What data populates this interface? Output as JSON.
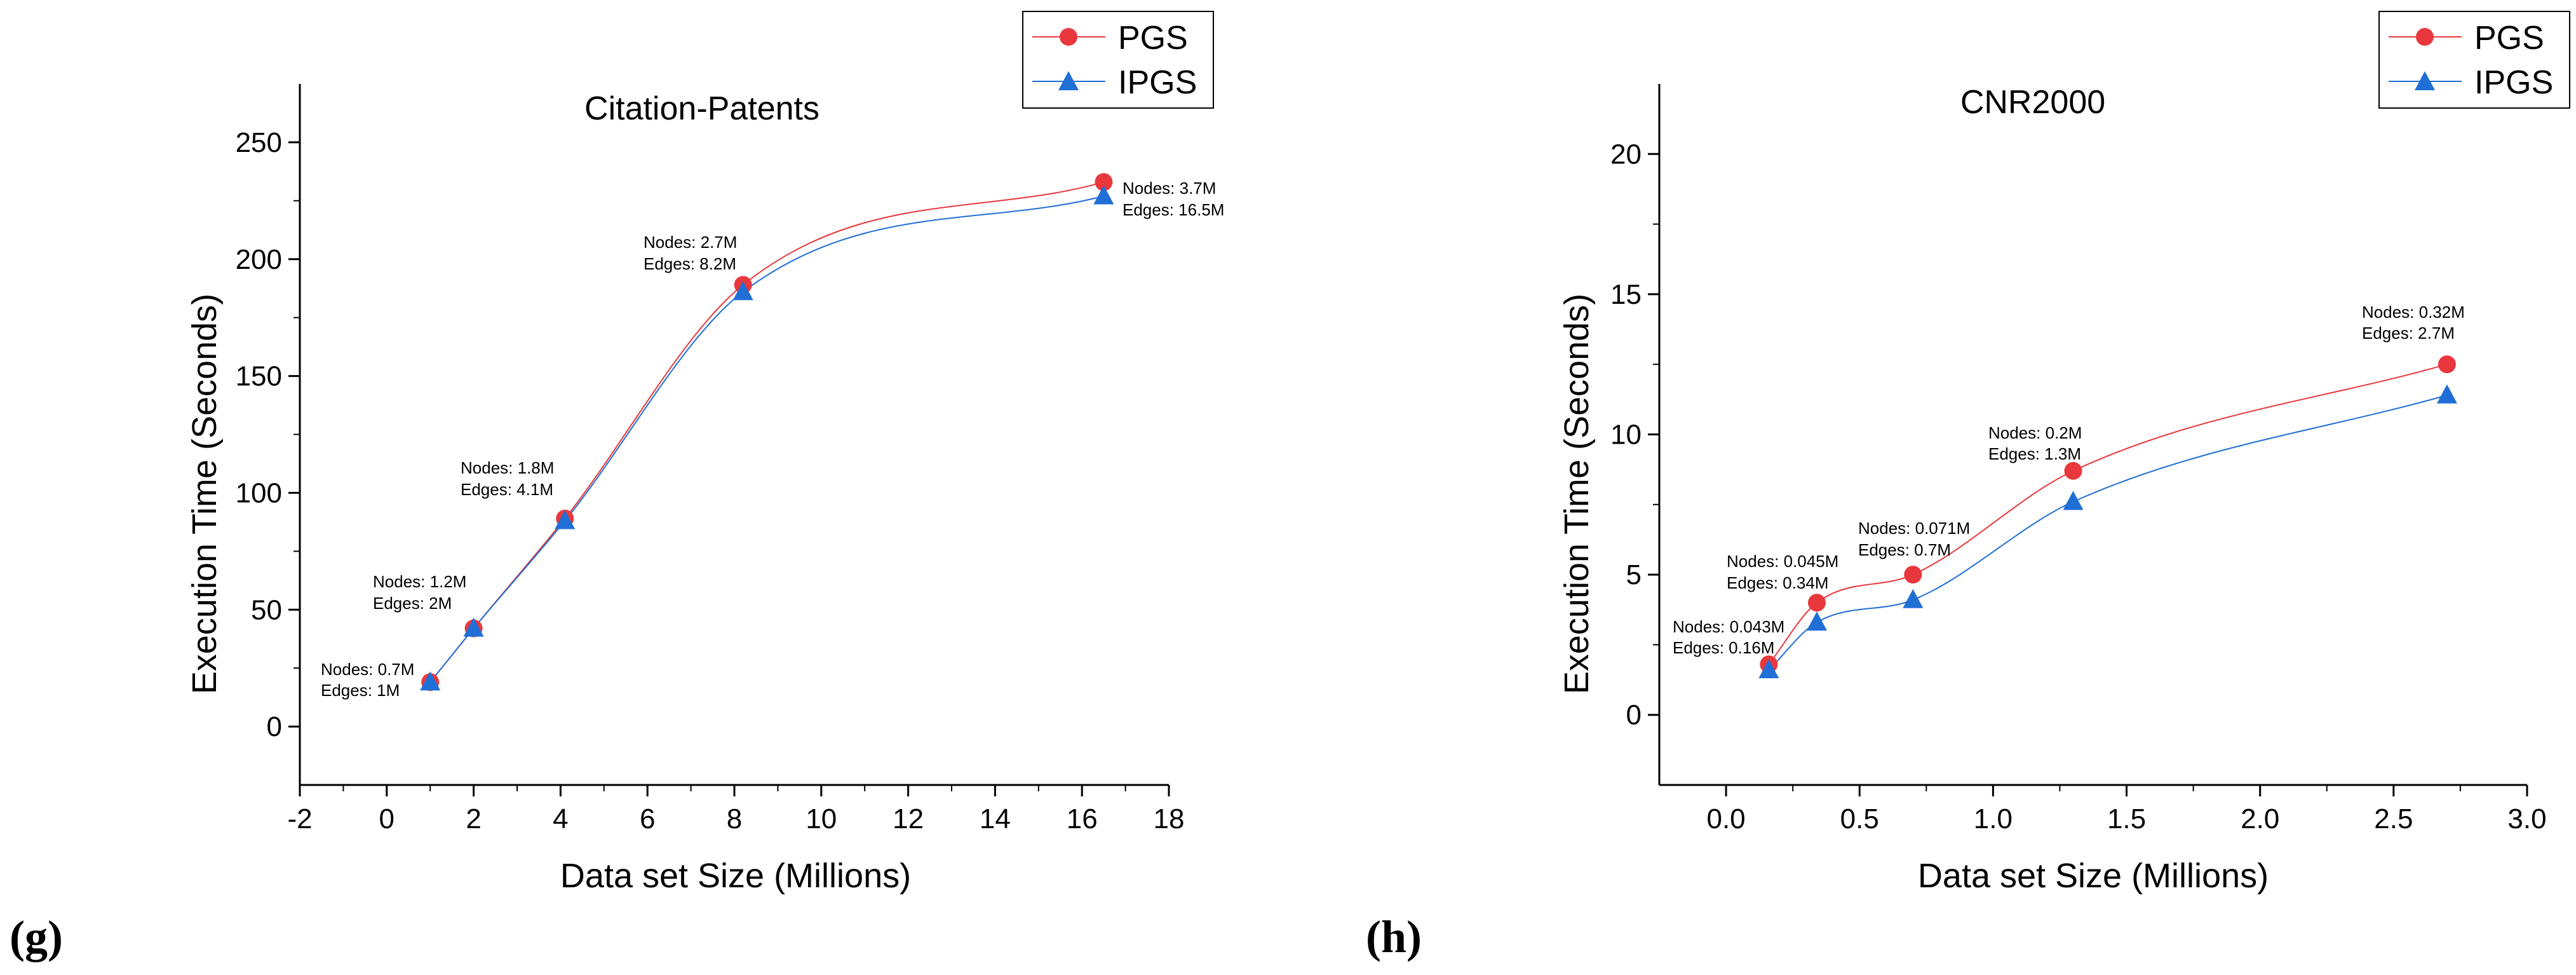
{
  "chart_data": [
    {
      "panel": "(g)",
      "type": "line",
      "title": "Citation-Patents",
      "xlabel": "Data set Size (Millions)",
      "ylabel": "Execution Time (Seconds)",
      "xlim": [
        -2,
        18
      ],
      "ylim": [
        -25,
        275
      ],
      "xticks": [
        -2,
        0,
        2,
        4,
        6,
        8,
        10,
        12,
        14,
        16,
        18
      ],
      "yticks": [
        0,
        50,
        100,
        150,
        200,
        250
      ],
      "x": [
        1,
        2,
        4.1,
        8.2,
        16.5
      ],
      "series": [
        {
          "name": "PGS",
          "values": [
            19,
            42,
            89,
            189,
            233
          ],
          "color": "#e8383d",
          "marker": "circle"
        },
        {
          "name": "IPGS",
          "values": [
            19,
            42,
            88,
            186,
            227
          ],
          "color": "#1f6fd6",
          "marker": "triangle"
        }
      ],
      "annotations": [
        {
          "line1": "Nodes: 0.7M",
          "line2": "Edges: 1M"
        },
        {
          "line1": "Nodes: 1.2M",
          "line2": "Edges: 2M"
        },
        {
          "line1": "Nodes: 1.8M",
          "line2": "Edges: 4.1M"
        },
        {
          "line1": "Nodes: 2.7M",
          "line2": "Edges: 8.2M"
        },
        {
          "line1": "Nodes: 3.7M",
          "line2": "Edges: 16.5M"
        }
      ],
      "legend": "top-right"
    },
    {
      "panel": "(h)",
      "type": "line",
      "title": "CNR2000",
      "xlabel": "Data set Size (Millions)",
      "ylabel": "Execution Time (Seconds)",
      "xlim": [
        -0.25,
        3.0
      ],
      "ylim": [
        -2.5,
        22.5
      ],
      "xticks": [
        0.0,
        0.5,
        1.0,
        1.5,
        2.0,
        2.5,
        3.0
      ],
      "xtick_labels": [
        "0.0",
        "0.5",
        "1.0",
        "1.5",
        "2.0",
        "2.5",
        "3.0"
      ],
      "yticks": [
        0,
        5,
        10,
        15,
        20
      ],
      "x": [
        0.16,
        0.34,
        0.7,
        1.3,
        2.7
      ],
      "series": [
        {
          "name": "PGS",
          "values": [
            1.8,
            4.0,
            5.0,
            8.7,
            12.5
          ],
          "color": "#e8383d",
          "marker": "circle"
        },
        {
          "name": "IPGS",
          "values": [
            1.6,
            3.3,
            4.1,
            7.6,
            11.4
          ],
          "color": "#1f6fd6",
          "marker": "triangle"
        }
      ],
      "annotations": [
        {
          "line1": "Nodes: 0.043M",
          "line2": "Edges: 0.16M"
        },
        {
          "line1": "Nodes: 0.045M",
          "line2": "Edges: 0.34M"
        },
        {
          "line1": "Nodes: 0.071M",
          "line2": "Edges: 0.7M"
        },
        {
          "line1": "Nodes: 0.2M",
          "line2": "Edges: 1.3M"
        },
        {
          "line1": "Nodes: 0.32M",
          "line2": "Edges: 2.7M"
        }
      ],
      "legend": "top-right"
    }
  ]
}
